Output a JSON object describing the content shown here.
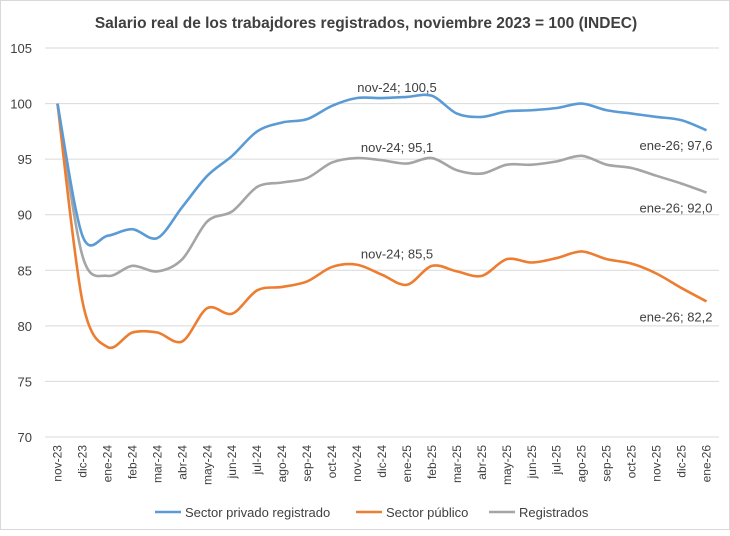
{
  "chart_data": {
    "type": "line",
    "title": "Salario real de los trabajdores registrados, noviembre 2023 = 100 (INDEC)",
    "xlabel": "",
    "ylabel": "",
    "ylim": [
      70,
      105
    ],
    "yticks": [
      70,
      75,
      80,
      85,
      90,
      95,
      100,
      105
    ],
    "grid": true,
    "legend": "bottom",
    "categories": [
      "nov-23",
      "dic-23",
      "ene-24",
      "feb-24",
      "mar-24",
      "abr-24",
      "may-24",
      "jun-24",
      "jul-24",
      "ago-24",
      "sep-24",
      "oct-24",
      "nov-24",
      "dic-24",
      "ene-25",
      "feb-25",
      "mar-25",
      "abr-25",
      "may-25",
      "jun-25",
      "jul-25",
      "ago-25",
      "sep-25",
      "oct-25",
      "nov-25",
      "dic-25",
      "ene-26"
    ],
    "series": [
      {
        "name": "Sector privado registrado",
        "color": "#5b9bd5",
        "values": [
          100,
          88.1,
          88.1,
          88.7,
          87.9,
          90.7,
          93.5,
          95.3,
          97.5,
          98.3,
          98.6,
          99.8,
          100.5,
          100.5,
          100.6,
          100.7,
          99.1,
          98.8,
          99.3,
          99.4,
          99.6,
          100.0,
          99.4,
          99.1,
          98.8,
          98.5,
          97.6
        ]
      },
      {
        "name": "Sector público",
        "color": "#ed7d31",
        "values": [
          100,
          82.2,
          78.1,
          79.4,
          79.4,
          78.6,
          81.6,
          81.1,
          83.2,
          83.5,
          84.0,
          85.3,
          85.5,
          84.6,
          83.7,
          85.4,
          84.9,
          84.5,
          86.0,
          85.7,
          86.1,
          86.7,
          86.0,
          85.6,
          84.7,
          83.4,
          82.2
        ]
      },
      {
        "name": "Registrados",
        "color": "#a5a5a5",
        "values": [
          100,
          86.3,
          84.5,
          85.4,
          84.9,
          86.0,
          89.4,
          90.3,
          92.5,
          92.9,
          93.3,
          94.7,
          95.1,
          94.9,
          94.6,
          95.1,
          94.0,
          93.7,
          94.5,
          94.5,
          94.8,
          95.3,
          94.5,
          94.2,
          93.5,
          92.8,
          92.0
        ]
      }
    ],
    "annotations": [
      {
        "series": 0,
        "index": 12,
        "text": "nov-24; 100,5"
      },
      {
        "series": 0,
        "index": 26,
        "text": "ene-26; 97,6"
      },
      {
        "series": 2,
        "index": 12,
        "text": "nov-24; 95,1"
      },
      {
        "series": 2,
        "index": 26,
        "text": "ene-26; 92,0"
      },
      {
        "series": 1,
        "index": 12,
        "text": "nov-24; 85,5"
      },
      {
        "series": 1,
        "index": 26,
        "text": "ene-26; 82,2"
      }
    ]
  }
}
